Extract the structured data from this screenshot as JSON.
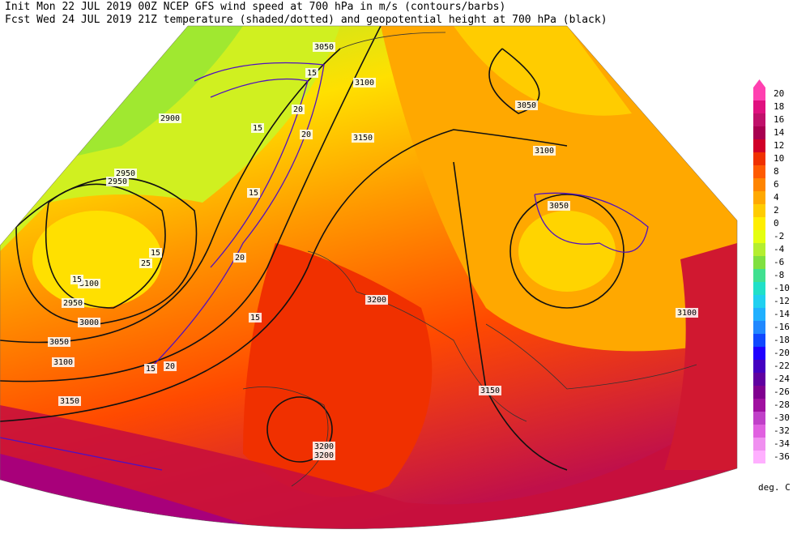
{
  "header": {
    "line1": "Init  Mon 22 JUL 2019 00Z  NCEP GFS wind speed at 700 hPa in m/s (contours/barbs)",
    "line2": "Fcst Wed 24 JUL 2019 21Z  temperature (shaded/dotted) and geopotential height at 700 hPa (black)"
  },
  "legend": {
    "levels": [
      "20",
      "18",
      "16",
      "14",
      "12",
      "10",
      "8",
      "6",
      "4",
      "2",
      "0",
      "-2",
      "-4",
      "-6",
      "-8",
      "-10",
      "-12",
      "-14",
      "-16",
      "-18",
      "-20",
      "-22",
      "-24",
      "-26",
      "-28",
      "-30",
      "-32",
      "-34",
      "-36"
    ],
    "colors": [
      "#ff40b0",
      "#e0107f",
      "#c0106a",
      "#a80050",
      "#d00028",
      "#f03000",
      "#ff5a00",
      "#ff8400",
      "#ffa800",
      "#ffcc00",
      "#ffee00",
      "#e4ff10",
      "#b4ee30",
      "#80e040",
      "#40e090",
      "#20e0c8",
      "#20d0f0",
      "#20b0ff",
      "#2088ff",
      "#1048ff",
      "#2000ff",
      "#4400c0",
      "#6000a0",
      "#800090",
      "#a010a0",
      "#c040c8",
      "#e060e0",
      "#f090f0",
      "#ffb0ff"
    ],
    "unit": "deg. C"
  },
  "map": {
    "height_labels": [
      "3050",
      "3100",
      "2900",
      "2950",
      "2950",
      "3150",
      "3100",
      "3050",
      "3050",
      "3100",
      "2950",
      "3000",
      "3050",
      "3100",
      "3150",
      "3200",
      "3200",
      "3200",
      "3150",
      "3100"
    ],
    "wind_labels": [
      "15",
      "20",
      "15",
      "20",
      "15",
      "20",
      "15",
      "25",
      "15",
      "20",
      "15",
      "15"
    ]
  }
}
